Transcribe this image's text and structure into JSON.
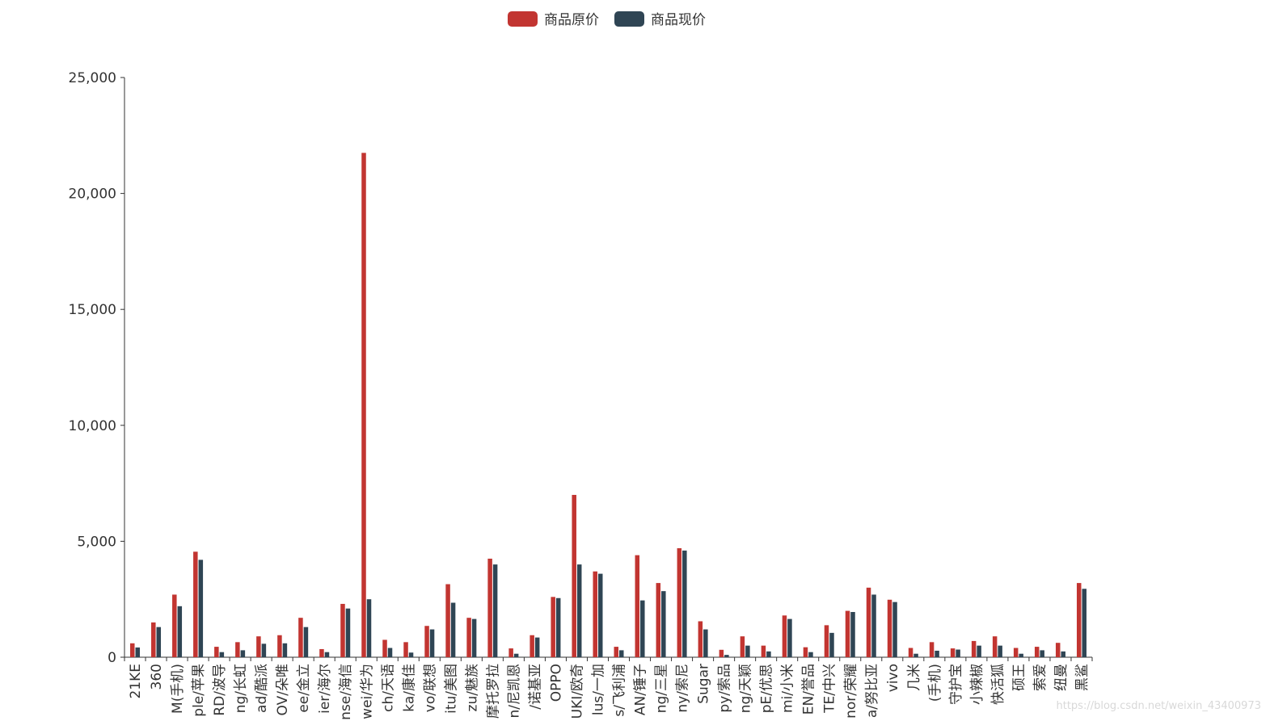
{
  "chart_data": {
    "type": "bar",
    "xlabel": "",
    "ylabel": "",
    "ylim": [
      0,
      25000
    ],
    "yticks": [
      0,
      5000,
      10000,
      15000,
      20000,
      25000
    ],
    "ytick_labels": [
      "0",
      "5,000",
      "10,000",
      "15,000",
      "20,000",
      "25,000"
    ],
    "legend_position": "top-center",
    "grid": false,
    "categories": [
      "21KE",
      "360",
      "M(手机)",
      "ple/苹果",
      "RD/波导",
      "ng/长虹",
      "ad/酷派",
      "OV/朵唯",
      "ee/金立",
      "ier/海尔",
      "nse/海信",
      "wei/华为",
      "ch/天语",
      "ka/康佳",
      "vo/联想",
      "itu/美图",
      "zu/魅族",
      "摩托罗拉",
      "n/尼凯恩",
      "/诺基亚",
      "OPPO",
      "UKI/欧奇",
      "lus/一加",
      "s/飞利浦",
      "AN/锤子",
      "ng/三星",
      "ny/索尼",
      "Sugar",
      "py/索品",
      "ng/天颖",
      "pE/优思",
      "mi/小米",
      "EN/誉品",
      "TE/中兴",
      "nor/荣耀",
      "a/努比亚",
      "vivo",
      "几米",
      "(手机)",
      "守护宝",
      "小辣椒",
      "快活狐",
      "硕王",
      "索爱",
      "纽曼",
      "黑鲨"
    ],
    "series": [
      {
        "name": "商品原价",
        "color": "#c23531",
        "values": [
          600,
          1500,
          2700,
          4550,
          450,
          650,
          900,
          950,
          1700,
          350,
          2300,
          21750,
          750,
          650,
          1350,
          3150,
          1700,
          4250,
          380,
          950,
          2600,
          7000,
          3700,
          450,
          4400,
          3200,
          4700,
          1550,
          320,
          900,
          500,
          1800,
          430,
          1380,
          2000,
          3000,
          2480,
          400,
          650,
          380,
          700,
          900,
          400,
          450,
          620,
          3200
        ]
      },
      {
        "name": "商品现价",
        "color": "#2f4554",
        "values": [
          420,
          1300,
          2200,
          4200,
          220,
          300,
          580,
          600,
          1300,
          220,
          2100,
          2500,
          400,
          200,
          1200,
          2350,
          1650,
          4000,
          150,
          850,
          2550,
          4000,
          3600,
          300,
          2450,
          2850,
          4600,
          1200,
          100,
          500,
          250,
          1650,
          220,
          1050,
          1950,
          2700,
          2380,
          150,
          280,
          330,
          500,
          500,
          150,
          300,
          250,
          2950
        ]
      }
    ]
  },
  "watermark": "https://blog.csdn.net/weixin_43400973"
}
